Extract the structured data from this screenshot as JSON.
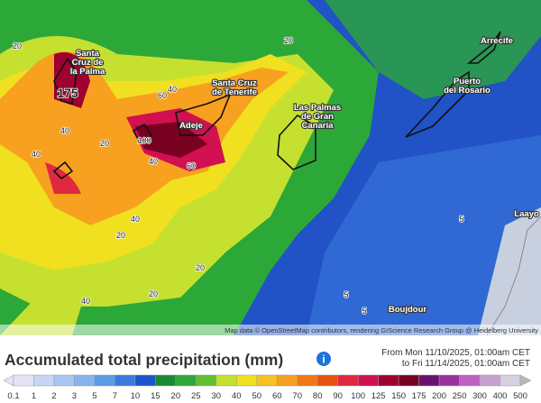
{
  "map": {
    "places": [
      {
        "lines": [
          "Santa",
          "Cruz de",
          "la Palma"
        ]
      },
      {
        "lines": [
          "Santa Cruz",
          "de Tenerife"
        ]
      },
      {
        "lines": [
          "Adeje"
        ]
      },
      {
        "lines": [
          "Las Palmas",
          "de Gran",
          "Canaria"
        ]
      },
      {
        "lines": [
          "Puerto",
          "del Rosario"
        ]
      },
      {
        "lines": [
          "Arrecife"
        ]
      },
      {
        "lines": [
          "Laayo"
        ]
      },
      {
        "lines": [
          "Boujdour"
        ]
      }
    ],
    "contour_labels": [
      "20",
      "175",
      "20",
      "40",
      "20",
      "40",
      "60",
      "40",
      "100",
      "40",
      "60",
      "40",
      "20",
      "20",
      "40",
      "20",
      "5",
      "5",
      "5"
    ],
    "attribution": "Map data © OpenStreetMap contributors, rendering GIScience Research Group @ Heidelberg University"
  },
  "legend": {
    "title": "Accumulated total precipitation (mm)",
    "info": "i",
    "from": "From Mon 11/10/2025, 01:00am CET",
    "to": "to Fri 11/14/2025, 01:00am CET",
    "scale": [
      {
        "label": "0.1",
        "color": "#e4e4f6"
      },
      {
        "label": "1",
        "color": "#c6d6f6"
      },
      {
        "label": "2",
        "color": "#a6c6f0"
      },
      {
        "label": "3",
        "color": "#86b4ee"
      },
      {
        "label": "5",
        "color": "#5a9ce6"
      },
      {
        "label": "7",
        "color": "#3a7ade"
      },
      {
        "label": "10",
        "color": "#1c56cc"
      },
      {
        "label": "15",
        "color": "#188a30"
      },
      {
        "label": "20",
        "color": "#2ca838"
      },
      {
        "label": "25",
        "color": "#62c030"
      },
      {
        "label": "30",
        "color": "#c6e030"
      },
      {
        "label": "40",
        "color": "#f0e020"
      },
      {
        "label": "50",
        "color": "#f8c020"
      },
      {
        "label": "60",
        "color": "#f8a020"
      },
      {
        "label": "70",
        "color": "#f07818"
      },
      {
        "label": "80",
        "color": "#e85010"
      },
      {
        "label": "90",
        "color": "#e02840"
      },
      {
        "label": "100",
        "color": "#d01050"
      },
      {
        "label": "125",
        "color": "#a00030"
      },
      {
        "label": "150",
        "color": "#780020"
      },
      {
        "label": "175",
        "color": "#6a1070"
      },
      {
        "label": "200",
        "color": "#9a30a0"
      },
      {
        "label": "250",
        "color": "#c060c0"
      },
      {
        "label": "300",
        "color": "#c8a0d0"
      },
      {
        "label": "400",
        "color": "#d8d0e0"
      },
      {
        "label": "500",
        "color": "#b8b8b8"
      }
    ]
  }
}
